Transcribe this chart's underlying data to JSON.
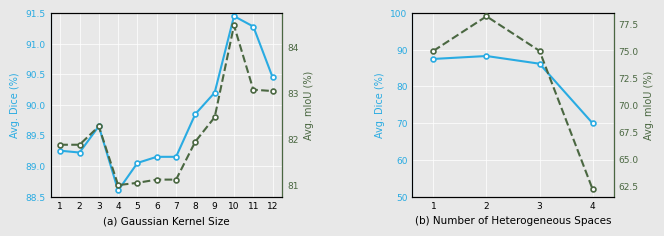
{
  "left": {
    "x": [
      1,
      2,
      3,
      4,
      5,
      6,
      7,
      8,
      9,
      10,
      11,
      12
    ],
    "dice": [
      89.25,
      89.22,
      89.65,
      88.6,
      89.05,
      89.15,
      89.15,
      89.85,
      90.2,
      91.45,
      91.28,
      90.45
    ],
    "miou": [
      81.88,
      81.88,
      82.28,
      81.0,
      81.05,
      81.12,
      81.12,
      81.95,
      82.48,
      84.48,
      83.08,
      83.05
    ],
    "dice_ylim": [
      88.5,
      91.5
    ],
    "miou_ylim": [
      80.75,
      84.75
    ],
    "dice_yticks": [
      88.5,
      89.0,
      89.5,
      90.0,
      90.5,
      91.0,
      91.5
    ],
    "miou_yticks": [
      81.0,
      82.0,
      83.0,
      84.0
    ],
    "xlabel": "(a) Gaussian Kernel Size",
    "ylabel_left": "Avg. Dice (%)",
    "ylabel_right": "Avg. mIoU (%)",
    "xticks": [
      1,
      2,
      3,
      4,
      5,
      6,
      7,
      8,
      9,
      10,
      11,
      12
    ]
  },
  "right": {
    "x": [
      1,
      2,
      3,
      4
    ],
    "dice": [
      87.5,
      88.3,
      86.2,
      70.0
    ],
    "miou": [
      75.0,
      78.2,
      75.0,
      62.2
    ],
    "dice_ylim": [
      50.0,
      100.0
    ],
    "miou_ylim": [
      61.5,
      78.5
    ],
    "dice_yticks": [
      50.0,
      60.0,
      70.0,
      80.0,
      90.0,
      100.0
    ],
    "miou_yticks": [
      62.5,
      65.0,
      67.5,
      70.0,
      72.5,
      75.0,
      77.5
    ],
    "xlabel": "(b) Number of Heterogeneous Spaces",
    "ylabel_left": "Avg. Dice (%)",
    "ylabel_right": "Avg. mIoU (%)",
    "xticks": [
      1,
      2,
      3,
      4
    ]
  },
  "dice_color": "#29ABE2",
  "miou_color": "#4A6741",
  "bg_color": "#E8E8E8",
  "marker": "o",
  "markersize": 3.5,
  "linewidth": 1.5
}
